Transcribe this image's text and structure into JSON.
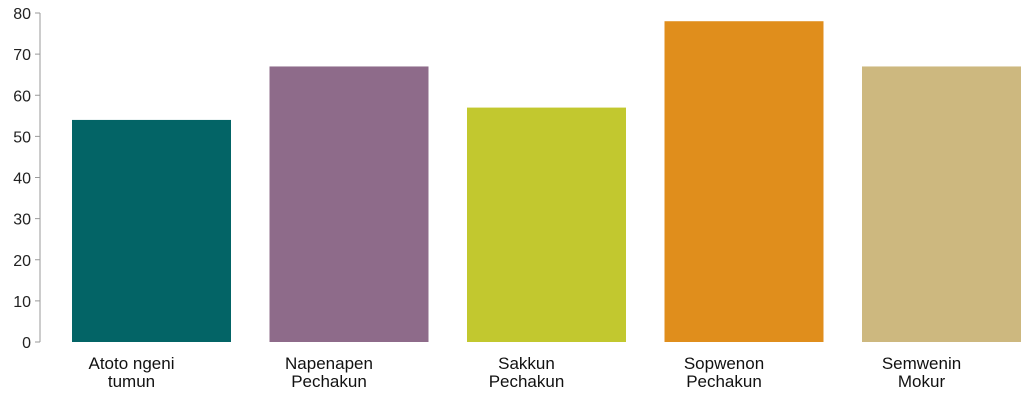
{
  "chart_data": {
    "type": "bar",
    "title": "",
    "xlabel": "",
    "ylabel": "",
    "categories": [
      [
        "Atoto ngeni",
        "tumun"
      ],
      [
        "Napenapen",
        "Pechakun"
      ],
      [
        "Sakkun",
        "Pechakun"
      ],
      [
        "Sopwenon",
        "Pechakun"
      ],
      [
        "Semwenin",
        "Mokur"
      ]
    ],
    "values": [
      54,
      67,
      57,
      78,
      67
    ],
    "colors": [
      "#036466",
      "#8e6b8a",
      "#c2c82f",
      "#e08e1c",
      "#cdb87f"
    ],
    "ylim": [
      0,
      80
    ],
    "yticks": [
      0,
      10,
      20,
      30,
      40,
      50,
      60,
      70,
      80
    ],
    "grid": false,
    "legend": "none"
  }
}
